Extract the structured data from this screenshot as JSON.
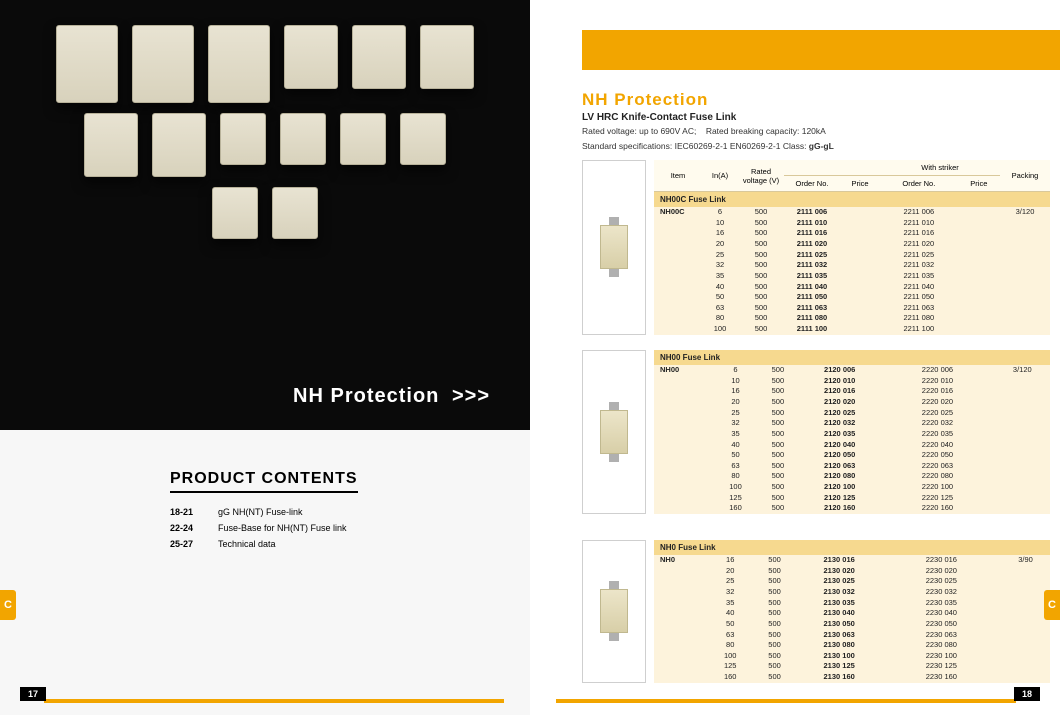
{
  "left": {
    "hero_caption": "NH  Protection",
    "hero_arrows": ">>>",
    "contents_title": "PRODUCT  CONTENTS",
    "contents": [
      {
        "pages": "18-21",
        "text": "gG NH(NT) Fuse-link"
      },
      {
        "pages": "22-24",
        "text": "Fuse-Base for NH(NT) Fuse link"
      },
      {
        "pages": "25-27",
        "text": "Technical data"
      }
    ],
    "page_num": "17",
    "tab": "C"
  },
  "right": {
    "title": "NH  Protection",
    "subtitle": "LV HRC Knife-Contact   Fuse Link",
    "meta1a": "Rated voltage: up to 690V AC;",
    "meta1b": "Rated breaking capacity: 120kA",
    "meta2a": "Standard specifications: IEC60269-2-1   EN60269-2-1   Class: ",
    "meta2b": "gG-gL",
    "headers": {
      "item": "Item",
      "in": "In(A)",
      "rv": "Rated voltage (V)",
      "order": "Order No.",
      "price": "Price",
      "striker": "With striker",
      "packing": "Packing"
    },
    "sections": [
      {
        "title": "NH00C Fuse Link",
        "item": "NH00C",
        "packing": "3/120",
        "rows": [
          {
            "in": "6",
            "v": "500",
            "o1": "2111 006",
            "o2": "2211 006"
          },
          {
            "in": "10",
            "v": "500",
            "o1": "2111 010",
            "o2": "2211 010"
          },
          {
            "in": "16",
            "v": "500",
            "o1": "2111 016",
            "o2": "2211 016"
          },
          {
            "in": "20",
            "v": "500",
            "o1": "2111 020",
            "o2": "2211 020"
          },
          {
            "in": "25",
            "v": "500",
            "o1": "2111 025",
            "o2": "2211 025"
          },
          {
            "in": "32",
            "v": "500",
            "o1": "2111 032",
            "o2": "2211 032"
          },
          {
            "in": "35",
            "v": "500",
            "o1": "2111 035",
            "o2": "2211 035"
          },
          {
            "in": "40",
            "v": "500",
            "o1": "2111 040",
            "o2": "2211 040"
          },
          {
            "in": "50",
            "v": "500",
            "o1": "2111 050",
            "o2": "2211 050"
          },
          {
            "in": "63",
            "v": "500",
            "o1": "2111 063",
            "o2": "2211 063"
          },
          {
            "in": "80",
            "v": "500",
            "o1": "2111 080",
            "o2": "2211 080"
          },
          {
            "in": "100",
            "v": "500",
            "o1": "2111 100",
            "o2": "2211 100"
          }
        ]
      },
      {
        "title": "NH00 Fuse Link",
        "item": "NH00",
        "packing": "3/120",
        "rows": [
          {
            "in": "6",
            "v": "500",
            "o1": "2120 006",
            "o2": "2220 006"
          },
          {
            "in": "10",
            "v": "500",
            "o1": "2120 010",
            "o2": "2220 010"
          },
          {
            "in": "16",
            "v": "500",
            "o1": "2120 016",
            "o2": "2220 016"
          },
          {
            "in": "20",
            "v": "500",
            "o1": "2120 020",
            "o2": "2220 020"
          },
          {
            "in": "25",
            "v": "500",
            "o1": "2120 025",
            "o2": "2220 025"
          },
          {
            "in": "32",
            "v": "500",
            "o1": "2120 032",
            "o2": "2220 032"
          },
          {
            "in": "35",
            "v": "500",
            "o1": "2120 035",
            "o2": "2220 035"
          },
          {
            "in": "40",
            "v": "500",
            "o1": "2120 040",
            "o2": "2220 040"
          },
          {
            "in": "50",
            "v": "500",
            "o1": "2120 050",
            "o2": "2220 050"
          },
          {
            "in": "63",
            "v": "500",
            "o1": "2120 063",
            "o2": "2220 063"
          },
          {
            "in": "80",
            "v": "500",
            "o1": "2120 080",
            "o2": "2220 080"
          },
          {
            "in": "100",
            "v": "500",
            "o1": "2120 100",
            "o2": "2220 100"
          },
          {
            "in": "125",
            "v": "500",
            "o1": "2120 125",
            "o2": "2220 125"
          },
          {
            "in": "160",
            "v": "500",
            "o1": "2120 160",
            "o2": "2220 160"
          }
        ]
      },
      {
        "title": "NH0 Fuse Link",
        "item": "NH0",
        "packing": "3/90",
        "rows": [
          {
            "in": "16",
            "v": "500",
            "o1": "2130 016",
            "o2": "2230 016"
          },
          {
            "in": "20",
            "v": "500",
            "o1": "2130 020",
            "o2": "2230 020"
          },
          {
            "in": "25",
            "v": "500",
            "o1": "2130 025",
            "o2": "2230 025"
          },
          {
            "in": "32",
            "v": "500",
            "o1": "2130 032",
            "o2": "2230 032"
          },
          {
            "in": "35",
            "v": "500",
            "o1": "2130 035",
            "o2": "2230 035"
          },
          {
            "in": "40",
            "v": "500",
            "o1": "2130 040",
            "o2": "2230 040"
          },
          {
            "in": "50",
            "v": "500",
            "o1": "2130 050",
            "o2": "2230 050"
          },
          {
            "in": "63",
            "v": "500",
            "o1": "2130 063",
            "o2": "2230 063"
          },
          {
            "in": "80",
            "v": "500",
            "o1": "2130 080",
            "o2": "2230 080"
          },
          {
            "in": "100",
            "v": "500",
            "o1": "2130 100",
            "o2": "2230 100"
          },
          {
            "in": "125",
            "v": "500",
            "o1": "2130 125",
            "o2": "2230 125"
          },
          {
            "in": "160",
            "v": "500",
            "o1": "2130 160",
            "o2": "2230 160"
          }
        ]
      }
    ],
    "page_num": "18",
    "tab": "C"
  }
}
